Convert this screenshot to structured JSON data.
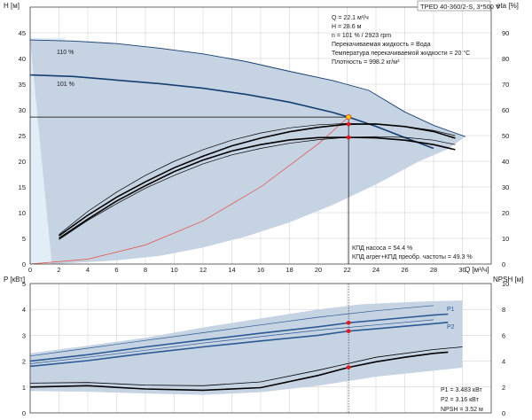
{
  "model_label": "TPED 40-360/2-S, 3*500 V",
  "colors": {
    "band": "#c5d3e3",
    "band_light": "#e3edf8",
    "curve_dark": "#163f70",
    "curve_blue": "#2c5a94",
    "curve_black": "#000000",
    "system_curve": "#e84a3f",
    "duty_point": "#e8151a",
    "duty_marker": "#ffcc00",
    "text": "#1b1b1b",
    "axis": "#444444"
  },
  "info_top": [
    "Q = 22.1 м³/ч",
    "H = 28.6 м",
    "n = 101 % / 2923 rpm",
    "Перекачиваемая жидкость = Вода",
    "Температура перекачиваемой жидкости = 20 °C",
    "Плотность = 998.2 кг/м³"
  ],
  "info_eff": [
    "КПД насоса = 54.4 %",
    "КПД агрег+КПД преобр. частоты = 49.3 %"
  ],
  "info_power": [
    "P1 = 3.483 кВт",
    "P2 = 3.16 кВт",
    "NPSH = 3.52 м"
  ],
  "chart_data": [
    {
      "type": "line",
      "title": "",
      "xlabel": "Q [м³/ч]",
      "ylabel_left": "H [м]",
      "ylabel_right": "eta [%]",
      "xlim": [
        0,
        32
      ],
      "ylim_left": [
        0,
        50
      ],
      "ylim_right": [
        0,
        100
      ],
      "x_ticks": [
        0,
        2,
        4,
        6,
        8,
        10,
        12,
        14,
        16,
        18,
        20,
        22,
        24,
        26,
        28,
        30
      ],
      "y_ticks_left": [
        0,
        5,
        10,
        15,
        20,
        25,
        30,
        35,
        40,
        45
      ],
      "y_ticks_right": [
        0,
        10,
        20,
        30,
        40,
        50,
        60,
        70,
        80,
        90
      ],
      "grid": true,
      "operating_range_band": [
        [
          0,
          43.6
        ],
        [
          3,
          43.4
        ],
        [
          6,
          42.9
        ],
        [
          9,
          42.0
        ],
        [
          12,
          40.9
        ],
        [
          15,
          39.4
        ],
        [
          18,
          37.5
        ],
        [
          21,
          35.7
        ],
        [
          23.5,
          33.8
        ],
        [
          26,
          29.6
        ],
        [
          28,
          27.0
        ],
        [
          30.2,
          24.8
        ],
        [
          29,
          22.4
        ],
        [
          27,
          20.0
        ],
        [
          24,
          15.5
        ],
        [
          21,
          11.5
        ],
        [
          18,
          8.1
        ],
        [
          15,
          5.4
        ],
        [
          12,
          3.2
        ],
        [
          9,
          1.6
        ],
        [
          6,
          0.7
        ],
        [
          3,
          0.2
        ],
        [
          1.5,
          0
        ]
      ],
      "series": [
        {
          "name": "110 %",
          "axis": "left",
          "x": [
            0,
            3,
            6,
            9,
            12,
            15,
            18,
            21,
            23.5,
            26,
            28,
            30.2
          ],
          "y": [
            43.6,
            43.4,
            42.9,
            42.0,
            40.9,
            39.4,
            37.5,
            35.7,
            33.8,
            29.6,
            27.0,
            24.8
          ]
        },
        {
          "name": "101 %",
          "axis": "left",
          "x": [
            0,
            3,
            6,
            9,
            12,
            15,
            18,
            21,
            22.1,
            24,
            26,
            28
          ],
          "y": [
            36.8,
            36.5,
            35.8,
            35.1,
            34.2,
            33.0,
            31.5,
            29.5,
            28.6,
            26.8,
            24.6,
            22.5
          ]
        },
        {
          "name": "",
          "axis": "right",
          "x": [
            2,
            4,
            6,
            8,
            10,
            12,
            14,
            16,
            18,
            20,
            22,
            24,
            26,
            28,
            29.5
          ],
          "y": [
            11,
            19,
            26,
            32,
            37.5,
            42,
            46,
            49,
            51.5,
            53.2,
            54.4,
            54.5,
            53.5,
            51.6,
            49
          ]
        },
        {
          "name": "",
          "axis": "right",
          "x": [
            2,
            4,
            6,
            8,
            10,
            12,
            14,
            16,
            18,
            20,
            22,
            24,
            26,
            28,
            29.5
          ],
          "y": [
            10,
            17.5,
            24.5,
            30.5,
            36,
            40.5,
            44,
            46.5,
            48.3,
            49.2,
            49.3,
            49.1,
            48.2,
            46.5,
            44.5
          ]
        },
        {
          "name": "",
          "axis": "right",
          "x": [
            2,
            4,
            6,
            8,
            10,
            12,
            14,
            16,
            18,
            20,
            22,
            24,
            26,
            28,
            29.5
          ],
          "y": [
            11.5,
            20.5,
            28,
            34.5,
            40,
            44.5,
            48.2,
            51,
            53,
            54.2,
            54.7,
            54.4,
            53.6,
            52,
            50
          ]
        },
        {
          "name": "",
          "axis": "right",
          "x": [
            2,
            4,
            6,
            8,
            10,
            12,
            14,
            16,
            18,
            20,
            22,
            24,
            26,
            28,
            29.5
          ],
          "y": [
            9.5,
            17,
            23.5,
            29.5,
            34.5,
            39,
            42.5,
            45,
            47,
            48.4,
            49.3,
            49.6,
            49.3,
            48.2,
            46.5
          ]
        }
      ],
      "system_curve": {
        "x": [
          0,
          4,
          8,
          12,
          16,
          20,
          22.1
        ],
        "y": [
          0,
          0.94,
          3.7,
          8.4,
          15.0,
          23.4,
          28.6
        ]
      },
      "duty_point": {
        "x": 22.1,
        "y": 28.6
      },
      "duty_marks_right": [
        54.4,
        49.3
      ]
    },
    {
      "type": "line",
      "title": "",
      "xlabel": "",
      "ylabel_left": "P [кВт]",
      "ylabel_right": "NPSH [м]",
      "xlim": [
        0,
        32
      ],
      "ylim_left": [
        0,
        5
      ],
      "ylim_right": [
        0,
        10
      ],
      "y_ticks_left": [
        0,
        1,
        2,
        3,
        4,
        5
      ],
      "y_ticks_right": [
        0,
        2,
        4,
        6,
        8,
        10
      ],
      "grid": true,
      "operating_range_band": [
        [
          0,
          2.3
        ],
        [
          4,
          2.6
        ],
        [
          8,
          2.9
        ],
        [
          12,
          3.3
        ],
        [
          16,
          3.65
        ],
        [
          20,
          4.0
        ],
        [
          23,
          4.2
        ],
        [
          27,
          4.3
        ],
        [
          30,
          4.35
        ],
        [
          30,
          1.75
        ],
        [
          24,
          1.4
        ],
        [
          20,
          1.05
        ],
        [
          16,
          0.8
        ],
        [
          12,
          0.7
        ],
        [
          8,
          0.75
        ],
        [
          4,
          0.82
        ],
        [
          0,
          0.85
        ]
      ],
      "series": [
        {
          "name": "P1",
          "axis": "left",
          "x": [
            0,
            4,
            8,
            12,
            16,
            20,
            22.1,
            24,
            26,
            28,
            29
          ],
          "y": [
            2.0,
            2.25,
            2.55,
            2.82,
            3.08,
            3.33,
            3.483,
            3.58,
            3.68,
            3.78,
            3.82
          ]
        },
        {
          "name": "P2",
          "axis": "left",
          "x": [
            0,
            4,
            8,
            12,
            16,
            20,
            22.1,
            24,
            26,
            28,
            29
          ],
          "y": [
            1.8,
            2.02,
            2.3,
            2.55,
            2.78,
            3.0,
            3.16,
            3.25,
            3.35,
            3.45,
            3.5
          ]
        },
        {
          "name": "",
          "axis": "left",
          "x": [
            0,
            4,
            8,
            12,
            16,
            20,
            24,
            28
          ],
          "y": [
            2.2,
            2.5,
            2.8,
            3.1,
            3.4,
            3.7,
            3.95,
            4.15
          ]
        },
        {
          "name": "",
          "axis": "left",
          "x": [
            0,
            4,
            8,
            12,
            16,
            20,
            24,
            28
          ],
          "y": [
            1.9,
            2.15,
            2.42,
            2.7,
            2.95,
            3.2,
            3.4,
            3.6
          ]
        },
        {
          "name": "NPSH",
          "axis": "right",
          "x": [
            0,
            4,
            8,
            12,
            16,
            20,
            22.1,
            24,
            26,
            28,
            29
          ],
          "y": [
            2.0,
            2.1,
            1.85,
            1.75,
            1.95,
            2.9,
            3.52,
            3.95,
            4.3,
            4.6,
            4.7
          ]
        },
        {
          "name": "",
          "axis": "right",
          "x": [
            0,
            4,
            8,
            12,
            16,
            20,
            24,
            28,
            30
          ],
          "y": [
            2.3,
            2.35,
            2.15,
            2.1,
            2.4,
            3.3,
            4.3,
            4.9,
            5.1
          ]
        }
      ],
      "duty_point_x": 22.1,
      "duty_marks": [
        {
          "axis": "left",
          "y": 3.483
        },
        {
          "axis": "left",
          "y": 3.16
        },
        {
          "axis": "right",
          "y": 3.52
        }
      ]
    }
  ]
}
